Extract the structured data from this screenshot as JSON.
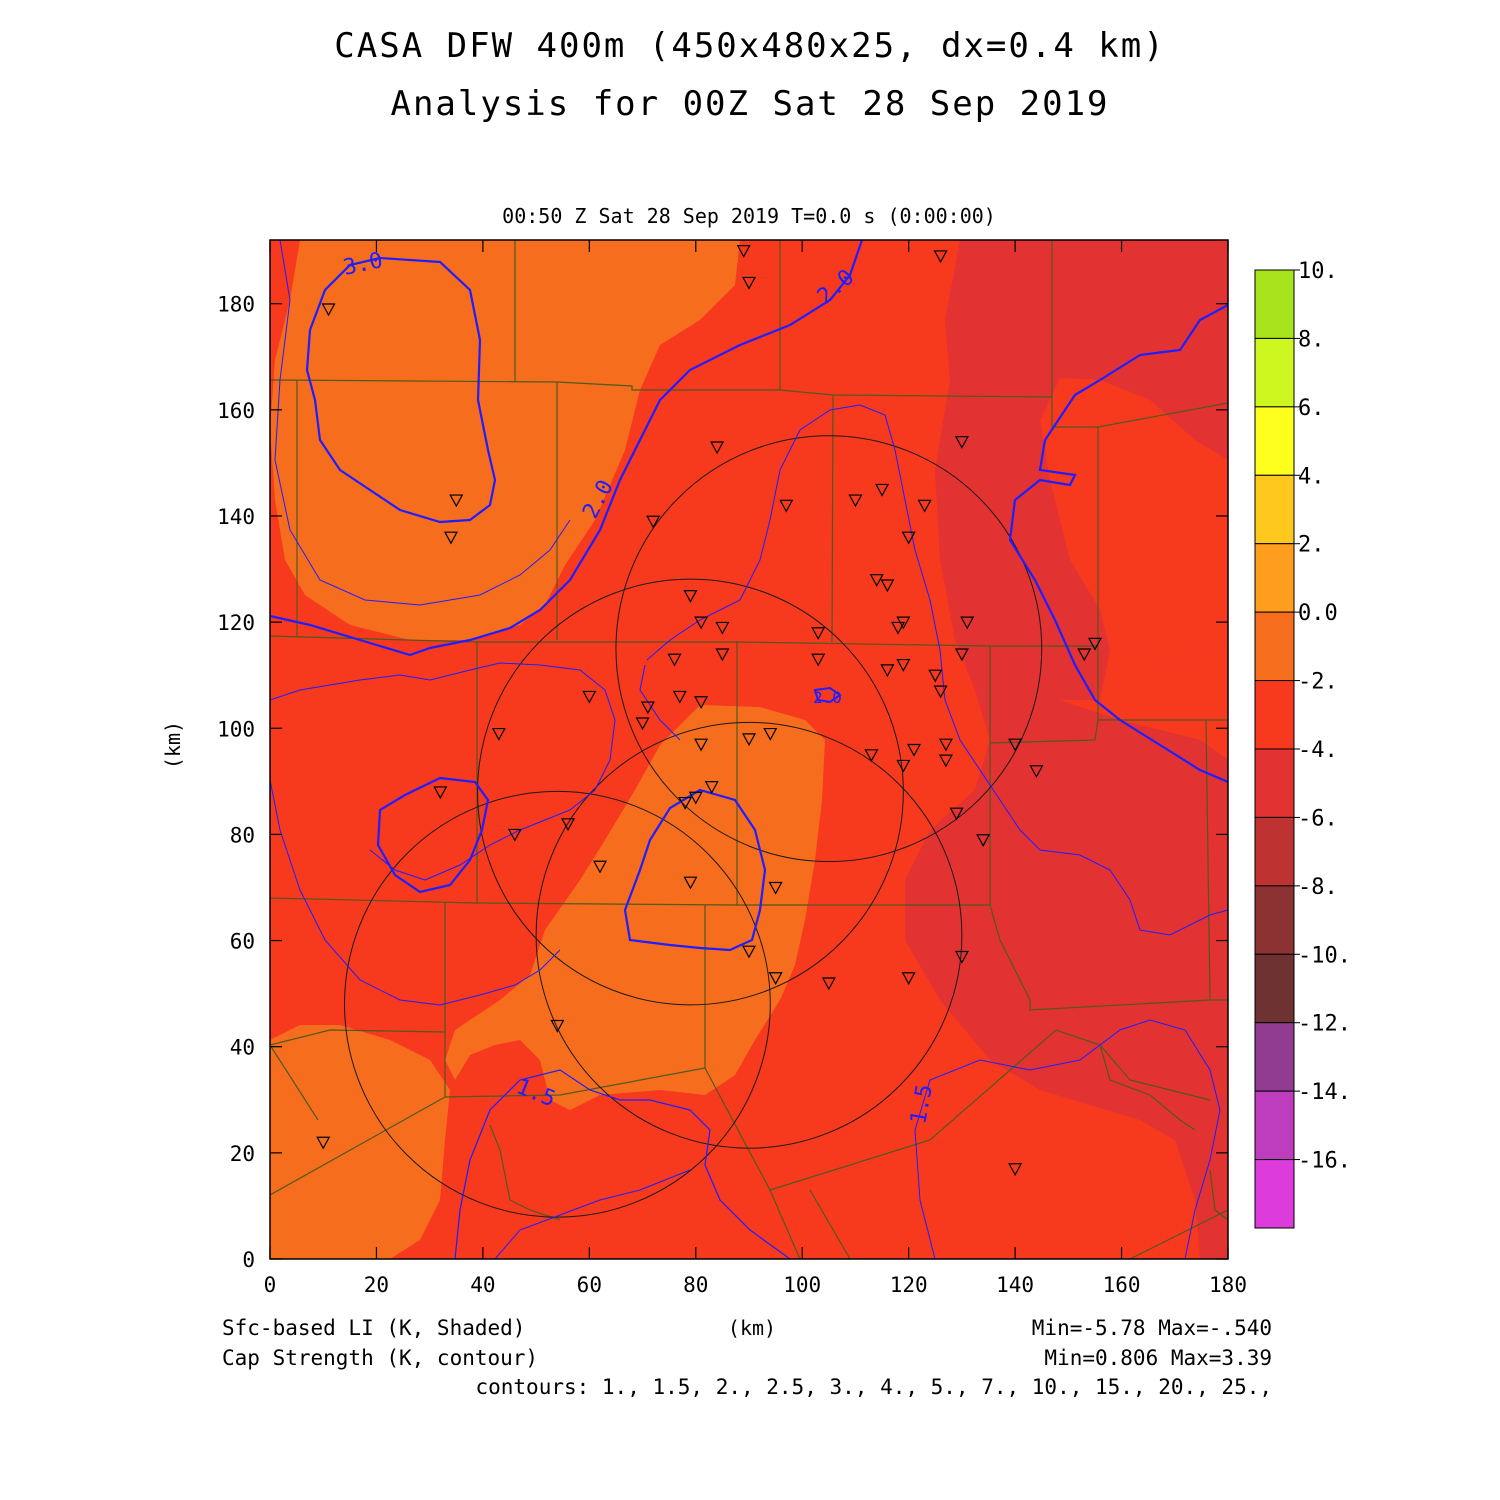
{
  "title_line1": "CASA DFW 400m (450x480x25, dx=0.4 km)",
  "title_line2": "Analysis for 00Z Sat 28 Sep 2019",
  "subtitle": "00:50 Z Sat 28 Sep 2019    T=0.0 s (0:00:00)",
  "axes": {
    "x_label": "(km)",
    "y_label": "(km)",
    "x_range": [
      0,
      180
    ],
    "y_range": [
      0,
      192
    ],
    "x_ticks": [
      0,
      20,
      40,
      60,
      80,
      100,
      120,
      140,
      160,
      180
    ],
    "y_ticks": [
      0,
      20,
      40,
      60,
      80,
      100,
      120,
      140,
      160,
      180
    ]
  },
  "shaded_field": {
    "name": "Sfc-based LI (K, Shaded)",
    "stats": "Min=-5.78  Max=-.540",
    "background_color": "#f7391e"
  },
  "contour_field": {
    "name": "Cap Strength (K, contour)",
    "stats": "Min=0.806  Max=3.39",
    "levels_text": "contours:  1.,  1.5,  2.,  2.5,  3.,  4.,  5.,  7.,  10.,  15.,  20.,  25.,",
    "labels": [
      "3.0",
      "2.0",
      "2.0",
      "1.5",
      "1.5",
      "2.0"
    ]
  },
  "colorbar": {
    "labels": [
      "10.",
      "8.",
      "6.",
      "4.",
      "2.",
      "0.0",
      "-2.",
      "-4.",
      "-6.",
      "-8.",
      "-10.",
      "-12.",
      "-14.",
      "-16."
    ],
    "colors": [
      "#a6e31c",
      "#cdf71e",
      "#ffff1e",
      "#ffc81e",
      "#ff9e1e",
      "#f76d1e",
      "#f7391e",
      "#e33232",
      "#be3232",
      "#8c3232",
      "#6e3232",
      "#913c91",
      "#be3cbe",
      "#dc3cdc"
    ]
  },
  "radars": [
    {
      "x": 105,
      "y": 115
    },
    {
      "x": 79,
      "y": 88
    },
    {
      "x": 90,
      "y": 61
    },
    {
      "x": 54,
      "y": 48
    }
  ],
  "stations": [
    [
      11,
      179
    ],
    [
      35,
      143
    ],
    [
      34,
      136
    ],
    [
      89,
      190
    ],
    [
      90,
      184
    ],
    [
      126,
      189
    ],
    [
      84,
      153
    ],
    [
      97,
      142
    ],
    [
      72,
      139
    ],
    [
      110,
      143
    ],
    [
      115,
      145
    ],
    [
      123,
      142
    ],
    [
      130,
      154
    ],
    [
      120,
      136
    ],
    [
      114,
      128
    ],
    [
      116,
      127
    ],
    [
      79,
      125
    ],
    [
      81,
      120
    ],
    [
      85,
      119
    ],
    [
      119,
      120
    ],
    [
      131,
      120
    ],
    [
      118,
      119
    ],
    [
      76,
      113
    ],
    [
      85,
      114
    ],
    [
      103,
      118
    ],
    [
      103,
      113
    ],
    [
      130,
      114
    ],
    [
      116,
      111
    ],
    [
      119,
      112
    ],
    [
      125,
      110
    ],
    [
      126,
      107
    ],
    [
      60,
      106
    ],
    [
      81,
      105
    ],
    [
      71,
      104
    ],
    [
      70,
      101
    ],
    [
      77,
      106
    ],
    [
      43,
      99
    ],
    [
      81,
      97
    ],
    [
      90,
      98
    ],
    [
      94,
      99
    ],
    [
      113,
      95
    ],
    [
      121,
      96
    ],
    [
      127,
      97
    ],
    [
      119,
      93
    ],
    [
      127,
      94
    ],
    [
      140,
      97
    ],
    [
      144,
      92
    ],
    [
      32,
      88
    ],
    [
      46,
      80
    ],
    [
      56,
      82
    ],
    [
      83,
      89
    ],
    [
      80,
      87
    ],
    [
      78,
      86
    ],
    [
      129,
      84
    ],
    [
      134,
      79
    ],
    [
      62,
      74
    ],
    [
      79,
      71
    ],
    [
      95,
      70
    ],
    [
      90,
      58
    ],
    [
      95,
      53
    ],
    [
      105,
      52
    ],
    [
      120,
      53
    ],
    [
      130,
      57
    ],
    [
      54,
      44
    ],
    [
      10,
      22
    ],
    [
      140,
      17
    ],
    [
      153,
      114
    ],
    [
      155,
      116
    ]
  ]
}
